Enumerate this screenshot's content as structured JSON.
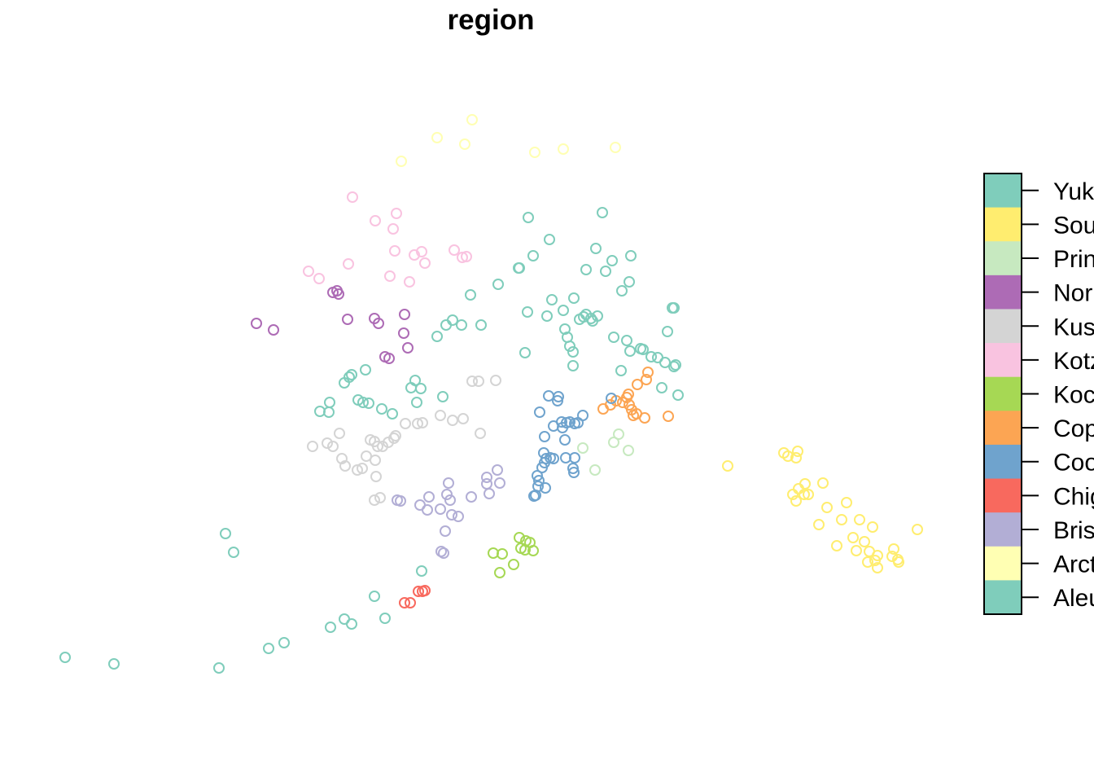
{
  "title": "region",
  "legend": {
    "labels": [
      "Yukon",
      "Southeast",
      "Prince William Sound",
      "Norton Sound",
      "Kuskokwim",
      "Kotzebue",
      "Kodiak",
      "Copper River",
      "Cook Inlet",
      "Chignik",
      "Bristol Bay",
      "Arctic",
      "Aleutians"
    ],
    "visible_text": [
      "Yuk",
      "Sou",
      "Prin",
      "Nor",
      "Kus",
      "Kotz",
      "Koc",
      "Cop",
      "Coo",
      "Chig",
      "Bris",
      "Arct",
      "Aleu"
    ],
    "colors": [
      "#7fcdbb",
      "#ffed6f",
      "#c7e9c0",
      "#ad6bb5",
      "#d4d4d4",
      "#f9c3e0",
      "#a6d854",
      "#fca553",
      "#6fa3cd",
      "#f8695e",
      "#b2aed5",
      "#ffffb3",
      "#7fcdbb"
    ]
  },
  "points": {
    "Aleutians": [
      [
        80,
        807
      ],
      [
        140,
        815
      ],
      [
        269,
        820
      ],
      [
        330,
        796
      ],
      [
        349,
        789
      ],
      [
        406,
        770
      ],
      [
        423,
        760
      ],
      [
        432,
        766
      ],
      [
        460,
        732
      ],
      [
        473,
        759
      ],
      [
        518,
        701
      ],
      [
        277,
        655
      ],
      [
        287,
        678
      ]
    ],
    "Yukon": [
      [
        649,
        267
      ],
      [
        740,
        261
      ],
      [
        675,
        294
      ],
      [
        655,
        314
      ],
      [
        637,
        329
      ],
      [
        638,
        329
      ],
      [
        612,
        349
      ],
      [
        578,
        362
      ],
      [
        720,
        331
      ],
      [
        732,
        305
      ],
      [
        752,
        320
      ],
      [
        744,
        333
      ],
      [
        775,
        314
      ],
      [
        773,
        346
      ],
      [
        764,
        357
      ],
      [
        705,
        366
      ],
      [
        678,
        368
      ],
      [
        672,
        388
      ],
      [
        692,
        381
      ],
      [
        648,
        383
      ],
      [
        717,
        389
      ],
      [
        720,
        386
      ],
      [
        726,
        391
      ],
      [
        734,
        388
      ],
      [
        728,
        394
      ],
      [
        712,
        392
      ],
      [
        556,
        393
      ],
      [
        548,
        399
      ],
      [
        567,
        399
      ],
      [
        591,
        399
      ],
      [
        537,
        413
      ],
      [
        694,
        404
      ],
      [
        697,
        414
      ],
      [
        700,
        425
      ],
      [
        704,
        432
      ],
      [
        704,
        449
      ],
      [
        645,
        433
      ],
      [
        754,
        414
      ],
      [
        770,
        418
      ],
      [
        774,
        431
      ],
      [
        787,
        428
      ],
      [
        790,
        429
      ],
      [
        800,
        438
      ],
      [
        808,
        439
      ],
      [
        817,
        445
      ],
      [
        830,
        448
      ],
      [
        828,
        450
      ],
      [
        828,
        378
      ],
      [
        826,
        378
      ],
      [
        820,
        407
      ],
      [
        763,
        455
      ],
      [
        813,
        476
      ],
      [
        833,
        485
      ],
      [
        449,
        454
      ],
      [
        423,
        470
      ],
      [
        429,
        463
      ],
      [
        432,
        460
      ],
      [
        440,
        491
      ],
      [
        446,
        494
      ],
      [
        453,
        495
      ],
      [
        469,
        502
      ],
      [
        482,
        508
      ],
      [
        510,
        467
      ],
      [
        505,
        476
      ],
      [
        517,
        477
      ],
      [
        544,
        487
      ],
      [
        512,
        494
      ],
      [
        405,
        494
      ],
      [
        393,
        505
      ],
      [
        404,
        506
      ]
    ],
    "Southeast": [
      [
        963,
        556
      ],
      [
        968,
        560
      ],
      [
        978,
        562
      ],
      [
        980,
        554
      ],
      [
        894,
        572
      ],
      [
        989,
        594
      ],
      [
        981,
        600
      ],
      [
        974,
        607
      ],
      [
        988,
        607
      ],
      [
        993,
        607
      ],
      [
        978,
        615
      ],
      [
        1011,
        593
      ],
      [
        1016,
        623
      ],
      [
        1040,
        617
      ],
      [
        1006,
        644
      ],
      [
        1034,
        638
      ],
      [
        1056,
        638
      ],
      [
        1072,
        647
      ],
      [
        1048,
        660
      ],
      [
        1062,
        665
      ],
      [
        1028,
        670
      ],
      [
        1052,
        676
      ],
      [
        1068,
        677
      ],
      [
        1066,
        690
      ],
      [
        1078,
        682
      ],
      [
        1075,
        688
      ],
      [
        1098,
        674
      ],
      [
        1096,
        683
      ],
      [
        1103,
        687
      ],
      [
        1104,
        690
      ],
      [
        1078,
        697
      ],
      [
        1127,
        650
      ]
    ],
    "Prince William Sound": [
      [
        760,
        533
      ],
      [
        754,
        543
      ],
      [
        716,
        550
      ],
      [
        772,
        553
      ],
      [
        731,
        577
      ]
    ],
    "Norton Sound": [
      [
        409,
        359
      ],
      [
        414,
        357
      ],
      [
        416,
        361
      ],
      [
        315,
        397
      ],
      [
        336,
        405
      ],
      [
        427,
        392
      ],
      [
        460,
        391
      ],
      [
        465,
        397
      ],
      [
        497,
        386
      ],
      [
        496,
        409
      ],
      [
        501,
        427
      ],
      [
        473,
        438
      ],
      [
        478,
        440
      ]
    ],
    "Kuskokwim": [
      [
        580,
        468
      ],
      [
        588,
        468
      ],
      [
        609,
        467
      ],
      [
        541,
        510
      ],
      [
        556,
        516
      ],
      [
        569,
        514
      ],
      [
        590,
        532
      ],
      [
        498,
        520
      ],
      [
        513,
        520
      ],
      [
        519,
        519
      ],
      [
        417,
        532
      ],
      [
        384,
        548
      ],
      [
        402,
        544
      ],
      [
        409,
        548
      ],
      [
        455,
        540
      ],
      [
        460,
        542
      ],
      [
        464,
        548
      ],
      [
        470,
        548
      ],
      [
        477,
        543
      ],
      [
        484,
        538
      ],
      [
        486,
        535
      ],
      [
        420,
        563
      ],
      [
        424,
        572
      ],
      [
        439,
        577
      ],
      [
        450,
        560
      ],
      [
        461,
        565
      ],
      [
        445,
        575
      ],
      [
        462,
        585
      ],
      [
        460,
        614
      ],
      [
        467,
        611
      ]
    ],
    "Kotzebue": [
      [
        433,
        242
      ],
      [
        461,
        271
      ],
      [
        487,
        262
      ],
      [
        483,
        281
      ],
      [
        379,
        333
      ],
      [
        392,
        342
      ],
      [
        428,
        324
      ],
      [
        485,
        308
      ],
      [
        509,
        313
      ],
      [
        518,
        309
      ],
      [
        522,
        323
      ],
      [
        558,
        307
      ],
      [
        568,
        316
      ],
      [
        573,
        315
      ],
      [
        503,
        346
      ],
      [
        479,
        339
      ]
    ],
    "Kodiak": [
      [
        638,
        660
      ],
      [
        646,
        664
      ],
      [
        651,
        666
      ],
      [
        640,
        673
      ],
      [
        645,
        675
      ],
      [
        655,
        676
      ],
      [
        606,
        679
      ],
      [
        617,
        680
      ],
      [
        631,
        693
      ],
      [
        614,
        703
      ]
    ],
    "Copper River": [
      [
        796,
        457
      ],
      [
        794,
        466
      ],
      [
        783,
        472
      ],
      [
        772,
        484
      ],
      [
        770,
        488
      ],
      [
        765,
        494
      ],
      [
        773,
        497
      ],
      [
        757,
        492
      ],
      [
        750,
        497
      ],
      [
        741,
        502
      ],
      [
        782,
        508
      ],
      [
        778,
        510
      ],
      [
        776,
        503
      ],
      [
        792,
        513
      ],
      [
        821,
        511
      ]
    ],
    "Cook Inlet": [
      [
        674,
        486
      ],
      [
        686,
        487
      ],
      [
        685,
        492
      ],
      [
        751,
        489
      ],
      [
        716,
        510
      ],
      [
        663,
        506
      ],
      [
        680,
        523
      ],
      [
        690,
        518
      ],
      [
        700,
        518
      ],
      [
        706,
        520
      ],
      [
        710,
        519
      ],
      [
        691,
        525
      ],
      [
        696,
        519
      ],
      [
        669,
        536
      ],
      [
        694,
        540
      ],
      [
        668,
        556
      ],
      [
        671,
        563
      ],
      [
        676,
        562
      ],
      [
        680,
        563
      ],
      [
        669,
        568
      ],
      [
        666,
        574
      ],
      [
        695,
        562
      ],
      [
        706,
        562
      ],
      [
        704,
        575
      ],
      [
        705,
        580
      ],
      [
        660,
        584
      ],
      [
        662,
        590
      ],
      [
        661,
        597
      ],
      [
        670,
        599
      ],
      [
        658,
        608
      ],
      [
        656,
        609
      ]
    ],
    "Chignik": [
      [
        497,
        740
      ],
      [
        504,
        740
      ],
      [
        514,
        726
      ],
      [
        519,
        726
      ],
      [
        522,
        725
      ]
    ],
    "Bristol Bay": [
      [
        551,
        593
      ],
      [
        549,
        607
      ],
      [
        527,
        610
      ],
      [
        553,
        614
      ],
      [
        563,
        634
      ],
      [
        555,
        632
      ],
      [
        541,
        625
      ],
      [
        525,
        626
      ],
      [
        516,
        620
      ],
      [
        488,
        614
      ],
      [
        492,
        615
      ],
      [
        579,
        610
      ],
      [
        598,
        586
      ],
      [
        611,
        577
      ],
      [
        598,
        594
      ],
      [
        614,
        593
      ],
      [
        601,
        606
      ],
      [
        547,
        652
      ],
      [
        542,
        677
      ],
      [
        545,
        679
      ]
    ],
    "Arctic": [
      [
        580,
        147
      ],
      [
        537,
        169
      ],
      [
        571,
        177
      ],
      [
        493,
        198
      ],
      [
        657,
        187
      ],
      [
        692,
        183
      ],
      [
        756,
        181
      ]
    ]
  },
  "region_colors": {
    "Aleutians": "#7fcdbb",
    "Yukon": "#7fcdbb",
    "Southeast": "#ffed6f",
    "Prince William Sound": "#c7e9c0",
    "Norton Sound": "#ad6bb5",
    "Kuskokwim": "#d4d4d4",
    "Kotzebue": "#f9c3e0",
    "Kodiak": "#a6d854",
    "Copper River": "#fca553",
    "Cook Inlet": "#6fa3cd",
    "Chignik": "#f8695e",
    "Bristol Bay": "#b2aed5",
    "Arctic": "#ffffb3"
  }
}
